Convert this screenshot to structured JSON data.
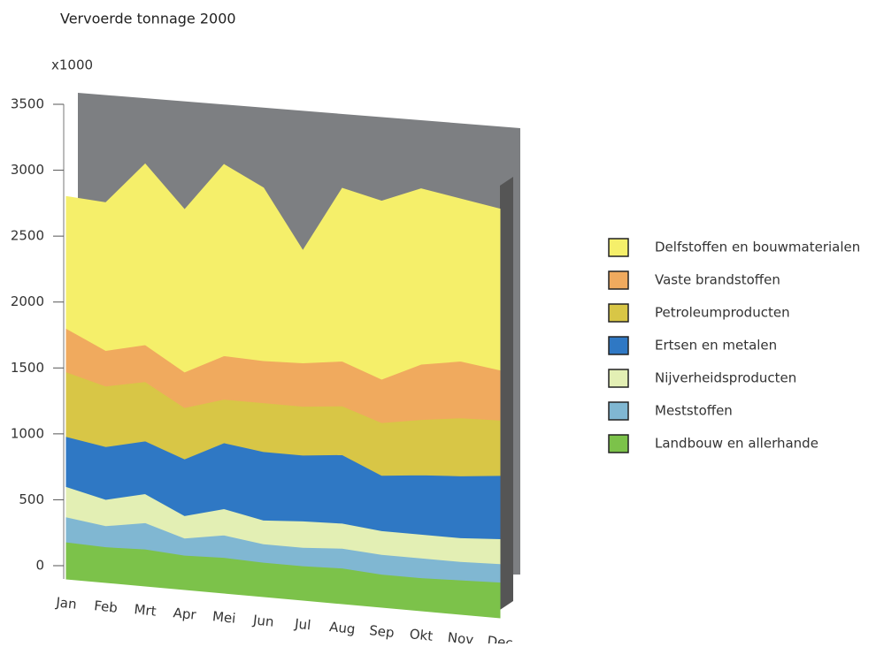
{
  "chart_data": {
    "type": "stacked-area",
    "title": "Vervoerde tonnage 2000",
    "y_unit": "x1000",
    "categories": [
      "Jan",
      "Feb",
      "Mrt",
      "Apr",
      "Mei",
      "Jun",
      "Jul",
      "Aug",
      "Sep",
      "Okt",
      "Nov",
      "Dec"
    ],
    "series": [
      {
        "name": "Delfstoffen en bouwmaterialen",
        "color": "#f5ef6a",
        "values": [
          1000,
          1120,
          1370,
          1230,
          1450,
          1310,
          850,
          1310,
          1350,
          1330,
          1230,
          1220
        ]
      },
      {
        "name": "Vaste brandstoffen",
        "color": "#f0aa5e",
        "values": [
          330,
          270,
          280,
          270,
          330,
          320,
          330,
          340,
          330,
          420,
          430,
          380
        ]
      },
      {
        "name": "Petroleumproducten",
        "color": "#d8c646",
        "values": [
          490,
          460,
          450,
          390,
          330,
          370,
          370,
          370,
          400,
          420,
          440,
          420
        ]
      },
      {
        "name": "Ertsen en metalen",
        "color": "#2f78c4",
        "values": [
          380,
          400,
          400,
          430,
          500,
          520,
          500,
          520,
          420,
          450,
          470,
          480
        ]
      },
      {
        "name": "Nijverheidsproducten",
        "color": "#e3efb4",
        "values": [
          230,
          200,
          220,
          170,
          200,
          180,
          200,
          190,
          180,
          180,
          180,
          190
        ]
      },
      {
        "name": "Meststoffen",
        "color": "#80b7d2",
        "values": [
          190,
          160,
          200,
          130,
          170,
          140,
          140,
          150,
          150,
          150,
          140,
          140
        ]
      },
      {
        "name": "Landbouw en allerhande",
        "color": "#7cc24a",
        "values": [
          180,
          170,
          180,
          160,
          170,
          160,
          160,
          170,
          150,
          150,
          160,
          170
        ]
      }
    ],
    "ylim": [
      0,
      3500
    ],
    "yticks": [
      0,
      500,
      1000,
      1500,
      2000,
      2500,
      3000,
      3500
    ]
  }
}
